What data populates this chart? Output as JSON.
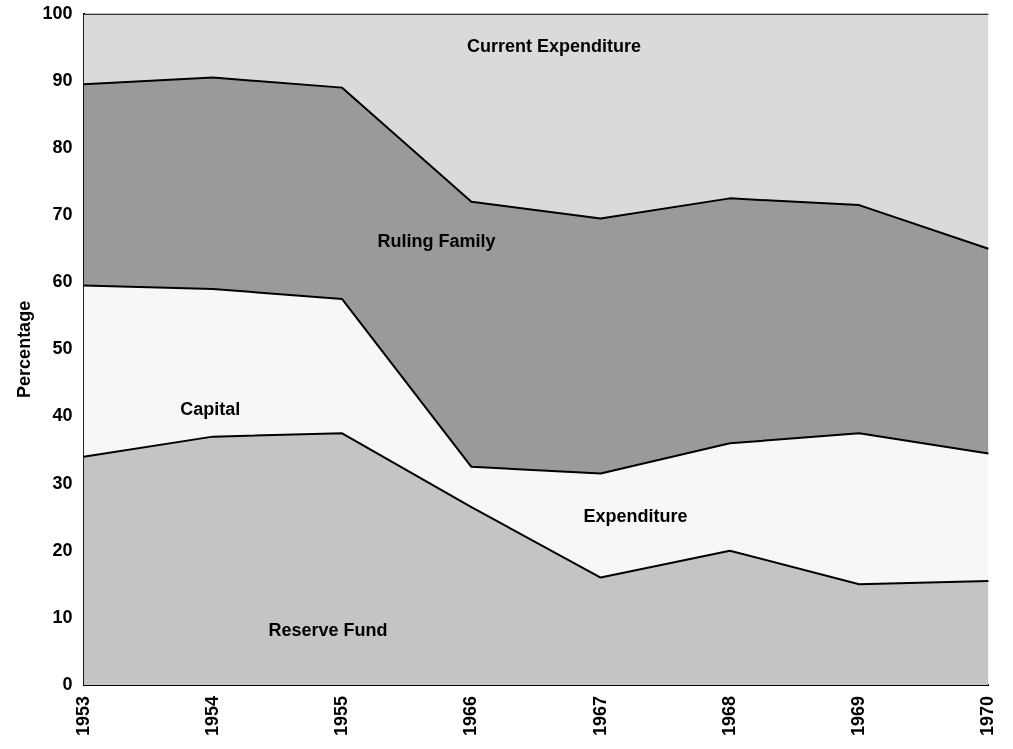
{
  "chart_data": {
    "type": "area",
    "stacked": true,
    "ylabel": "Percentage",
    "categories": [
      "1953",
      "1954",
      "1955",
      "1966",
      "1967",
      "1968",
      "1969",
      "1970"
    ],
    "series": [
      {
        "color": "#c4c4c4",
        "values": [
          34,
          37,
          37.5,
          26.5,
          16,
          20,
          15,
          15.5
        ]
      },
      {
        "color": "#f7f7f7",
        "values": [
          25.5,
          22,
          20,
          6,
          15.5,
          16,
          22.5,
          19
        ]
      },
      {
        "color": "#9a9a9a",
        "values": [
          30,
          31.5,
          31.5,
          39.5,
          38,
          36.5,
          34,
          30.5
        ]
      },
      {
        "color": "#dadada",
        "values": [
          10.5,
          9.5,
          11,
          28,
          30.5,
          27.5,
          28.5,
          35
        ]
      }
    ],
    "ylim": [
      0,
      100
    ],
    "yticks": [
      0,
      10,
      20,
      30,
      40,
      50,
      60,
      70,
      80,
      90,
      100
    ],
    "grid": false,
    "legend": false,
    "annotations": [
      "Current Expenditure",
      "Ruling Family",
      "Capital",
      "Expenditure",
      "Reserve Fund"
    ]
  }
}
